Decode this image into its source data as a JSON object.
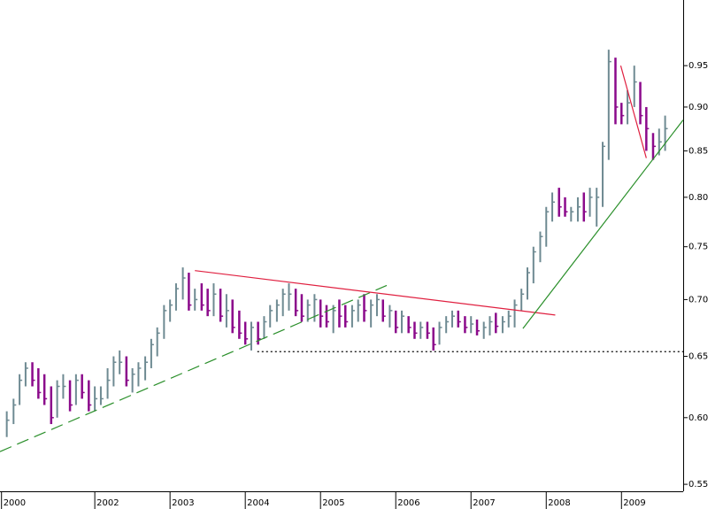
{
  "chart_data": {
    "type": "ohlc",
    "log_y": true,
    "up_color": "#6e8a92",
    "down_color": "#8b0a8b",
    "xlim": [
      2000.74,
      2009.82
    ],
    "ylim": [
      0.545,
      1.035
    ],
    "xticks": [
      {
        "value": 2000.76,
        "label": "2000"
      },
      2002,
      2003,
      2004,
      2005,
      2006,
      2007,
      2008,
      2009
    ],
    "yticks": [
      0.55,
      {
        "value": 0.6,
        "label": "0.60"
      },
      0.65,
      {
        "value": 0.7,
        "label": "0.70"
      },
      0.75,
      {
        "value": 0.8,
        "label": "0.80"
      },
      0.85,
      {
        "value": 0.9,
        "label": "0.90"
      },
      0.95
    ],
    "x": [
      2000.83,
      2000.92,
      2001.0,
      2001.08,
      2001.17,
      2001.25,
      2001.33,
      2001.42,
      2001.5,
      2001.58,
      2001.67,
      2001.75,
      2001.83,
      2001.92,
      2002.0,
      2002.08,
      2002.17,
      2002.25,
      2002.33,
      2002.42,
      2002.5,
      2002.58,
      2002.67,
      2002.75,
      2002.83,
      2002.92,
      2003.0,
      2003.08,
      2003.17,
      2003.25,
      2003.33,
      2003.42,
      2003.5,
      2003.58,
      2003.67,
      2003.75,
      2003.83,
      2003.92,
      2004.0,
      2004.08,
      2004.17,
      2004.25,
      2004.33,
      2004.42,
      2004.5,
      2004.58,
      2004.67,
      2004.75,
      2004.83,
      2004.92,
      2005.0,
      2005.08,
      2005.17,
      2005.25,
      2005.33,
      2005.42,
      2005.5,
      2005.58,
      2005.67,
      2005.75,
      2005.83,
      2005.92,
      2006.0,
      2006.08,
      2006.17,
      2006.25,
      2006.33,
      2006.42,
      2006.5,
      2006.58,
      2006.67,
      2006.75,
      2006.83,
      2006.92,
      2007.0,
      2007.08,
      2007.17,
      2007.25,
      2007.33,
      2007.42,
      2007.5,
      2007.58,
      2007.67,
      2007.75,
      2007.83,
      2007.92,
      2008.0,
      2008.08,
      2008.17,
      2008.25,
      2008.33,
      2008.42,
      2008.5,
      2008.58,
      2008.67,
      2008.75,
      2008.83,
      2008.92,
      2009.0,
      2009.08,
      2009.17,
      2009.25,
      2009.33,
      2009.42,
      2009.5,
      2009.58
    ],
    "high": [
      0.605,
      0.615,
      0.635,
      0.645,
      0.645,
      0.64,
      0.635,
      0.625,
      0.63,
      0.635,
      0.63,
      0.635,
      0.635,
      0.63,
      0.625,
      0.625,
      0.64,
      0.65,
      0.655,
      0.65,
      0.64,
      0.645,
      0.65,
      0.665,
      0.675,
      0.695,
      0.7,
      0.715,
      0.73,
      0.725,
      0.71,
      0.715,
      0.71,
      0.715,
      0.71,
      0.705,
      0.7,
      0.69,
      0.68,
      0.68,
      0.68,
      0.685,
      0.695,
      0.7,
      0.71,
      0.715,
      0.71,
      0.705,
      0.7,
      0.705,
      0.7,
      0.695,
      0.695,
      0.7,
      0.695,
      0.695,
      0.7,
      0.705,
      0.7,
      0.705,
      0.7,
      0.695,
      0.69,
      0.69,
      0.685,
      0.68,
      0.68,
      0.68,
      0.675,
      0.68,
      0.685,
      0.69,
      0.69,
      0.685,
      0.685,
      0.682,
      0.68,
      0.685,
      0.688,
      0.685,
      0.69,
      0.7,
      0.71,
      0.73,
      0.75,
      0.765,
      0.79,
      0.805,
      0.81,
      0.8,
      0.79,
      0.8,
      0.805,
      0.81,
      0.81,
      0.86,
      0.97,
      0.96,
      0.905,
      0.92,
      0.95,
      0.93,
      0.9,
      0.87,
      0.875,
      0.89
    ],
    "low": [
      0.585,
      0.595,
      0.61,
      0.625,
      0.625,
      0.615,
      0.61,
      0.595,
      0.6,
      0.615,
      0.605,
      0.61,
      0.615,
      0.605,
      0.605,
      0.61,
      0.615,
      0.625,
      0.635,
      0.625,
      0.62,
      0.625,
      0.63,
      0.64,
      0.65,
      0.665,
      0.68,
      0.69,
      0.7,
      0.69,
      0.69,
      0.69,
      0.685,
      0.685,
      0.68,
      0.675,
      0.67,
      0.665,
      0.66,
      0.655,
      0.66,
      0.665,
      0.675,
      0.68,
      0.685,
      0.69,
      0.685,
      0.68,
      0.68,
      0.68,
      0.675,
      0.675,
      0.67,
      0.675,
      0.675,
      0.675,
      0.68,
      0.68,
      0.675,
      0.685,
      0.68,
      0.675,
      0.67,
      0.67,
      0.67,
      0.665,
      0.665,
      0.665,
      0.655,
      0.66,
      0.67,
      0.675,
      0.675,
      0.67,
      0.67,
      0.668,
      0.665,
      0.668,
      0.67,
      0.67,
      0.675,
      0.675,
      0.69,
      0.7,
      0.715,
      0.735,
      0.75,
      0.775,
      0.78,
      0.78,
      0.775,
      0.775,
      0.775,
      0.78,
      0.77,
      0.79,
      0.84,
      0.88,
      0.88,
      0.88,
      0.9,
      0.88,
      0.85,
      0.84,
      0.845,
      0.85
    ],
    "close": [
      0.598,
      0.61,
      0.63,
      0.64,
      0.63,
      0.62,
      0.615,
      0.6,
      0.625,
      0.625,
      0.61,
      0.63,
      0.62,
      0.61,
      0.615,
      0.615,
      0.63,
      0.645,
      0.645,
      0.63,
      0.635,
      0.64,
      0.645,
      0.66,
      0.67,
      0.69,
      0.695,
      0.71,
      0.72,
      0.695,
      0.7,
      0.695,
      0.69,
      0.705,
      0.685,
      0.69,
      0.675,
      0.67,
      0.665,
      0.675,
      0.665,
      0.68,
      0.69,
      0.695,
      0.705,
      0.705,
      0.69,
      0.685,
      0.695,
      0.7,
      0.685,
      0.68,
      0.69,
      0.685,
      0.68,
      0.69,
      0.695,
      0.69,
      0.695,
      0.7,
      0.685,
      0.69,
      0.675,
      0.685,
      0.675,
      0.67,
      0.675,
      0.67,
      0.66,
      0.675,
      0.68,
      0.685,
      0.68,
      0.675,
      0.678,
      0.672,
      0.675,
      0.68,
      0.676,
      0.68,
      0.685,
      0.695,
      0.705,
      0.725,
      0.745,
      0.76,
      0.785,
      0.795,
      0.79,
      0.785,
      0.785,
      0.79,
      0.785,
      0.8,
      0.8,
      0.855,
      0.955,
      0.9,
      0.89,
      0.905,
      0.93,
      0.89,
      0.875,
      0.855,
      0.86,
      0.875
    ],
    "lines": [
      {
        "color": "#2a8f2a",
        "dash": "14,7",
        "x": [
          2000.74,
          2005.88
        ],
        "y": [
          0.574,
          0.713
        ]
      },
      {
        "color": "#e02040",
        "x": [
          2003.33,
          2008.12
        ],
        "y": [
          0.727,
          0.686
        ]
      },
      {
        "color": "#2a8f2a",
        "x": [
          2007.69,
          2009.82
        ],
        "y": [
          0.674,
          0.885
        ]
      },
      {
        "color": "#e02040",
        "x": [
          2008.99,
          2009.33
        ],
        "y": [
          0.95,
          0.842
        ]
      },
      {
        "color": "#000000",
        "dash": "2,3",
        "x": [
          2004.16,
          2009.82
        ],
        "y": [
          0.654,
          0.654
        ]
      }
    ]
  }
}
